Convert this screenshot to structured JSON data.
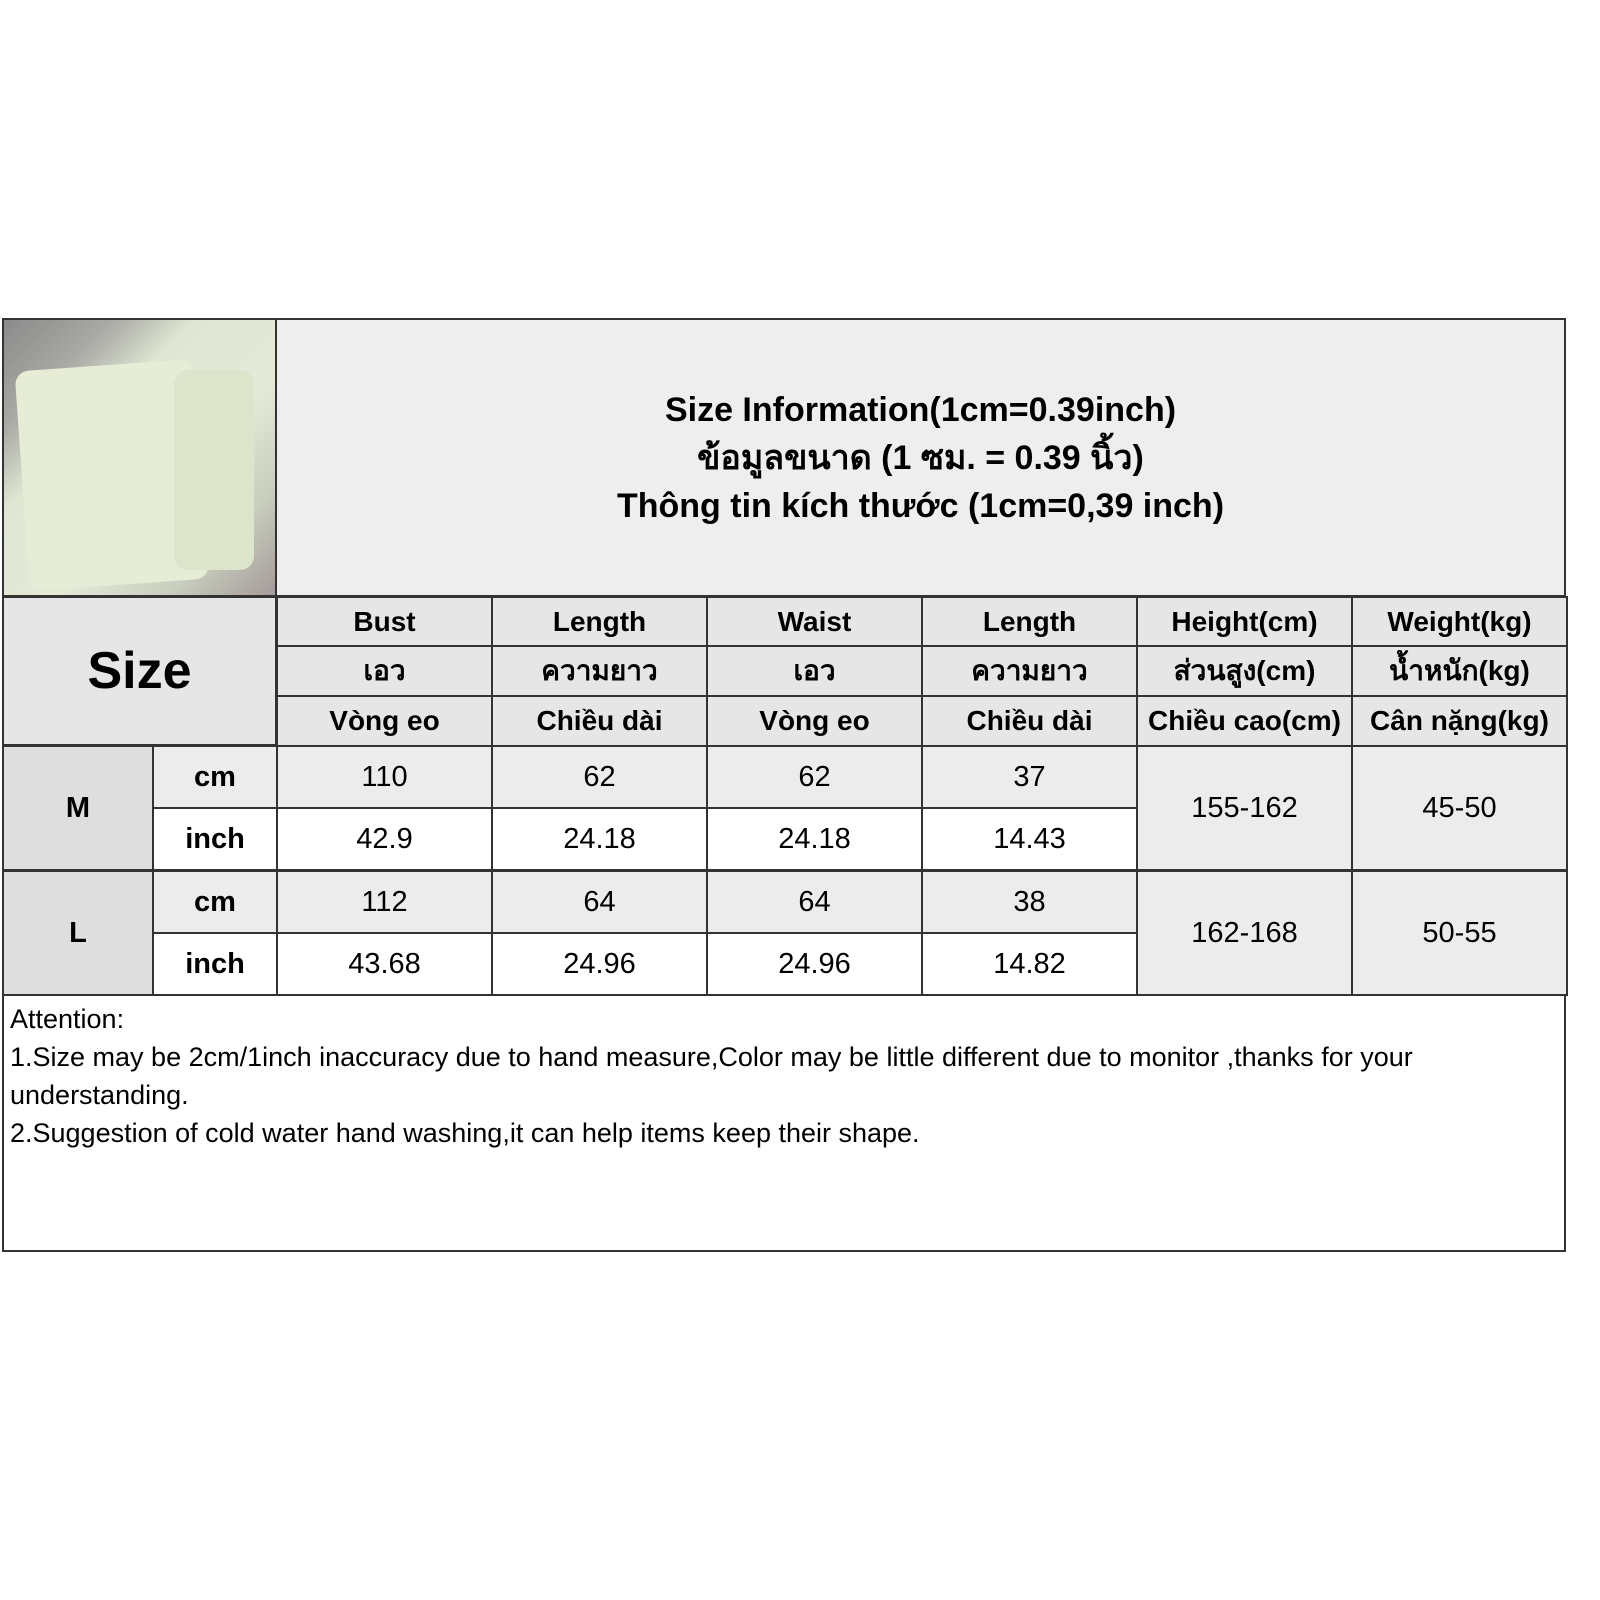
{
  "title": {
    "line1": "Size Information(1cm=0.39inch)",
    "line2": "ข้อมูลขนาด (1 ซม. = 0.39 นิ้ว)",
    "line3": "Thông tin kích thước (1cm=0,39 inch)"
  },
  "size_label": "Size",
  "columns": [
    {
      "en": "Bust",
      "th": "เอว",
      "vi": "Vòng eo"
    },
    {
      "en": "Length",
      "th": "ความยาว",
      "vi": "Chiều dài"
    },
    {
      "en": "Waist",
      "th": "เอว",
      "vi": "Vòng eo"
    },
    {
      "en": "Length",
      "th": "ความยาว",
      "vi": "Chiều dài"
    },
    {
      "en": "Height(cm)",
      "th": "ส่วนสูง(cm)",
      "vi": "Chiều cao(cm)"
    },
    {
      "en": "Weight(kg)",
      "th": "น้ำหนัก(kg)",
      "vi": "Cân nặng(kg)"
    }
  ],
  "rows": [
    {
      "size": "M",
      "cm_label": "cm",
      "inch_label": "inch",
      "cm": [
        "110",
        "62",
        "62",
        "37"
      ],
      "inch": [
        "42.9",
        "24.18",
        "24.18",
        "14.43"
      ],
      "height": "155-162",
      "weight": "45-50"
    },
    {
      "size": "L",
      "cm_label": "cm",
      "inch_label": "inch",
      "cm": [
        "112",
        "64",
        "64",
        "38"
      ],
      "inch": [
        "43.68",
        "24.96",
        "24.96",
        "14.82"
      ],
      "height": "162-168",
      "weight": "50-55"
    }
  ],
  "notes": {
    "heading": "Attention:",
    "line1": "1.Size may be 2cm/1inch inaccuracy due to hand measure,Color may be little different due to monitor ,thanks for your understanding.",
    "line2": "2.Suggestion of cold water hand washing,it can help items keep their shape."
  }
}
